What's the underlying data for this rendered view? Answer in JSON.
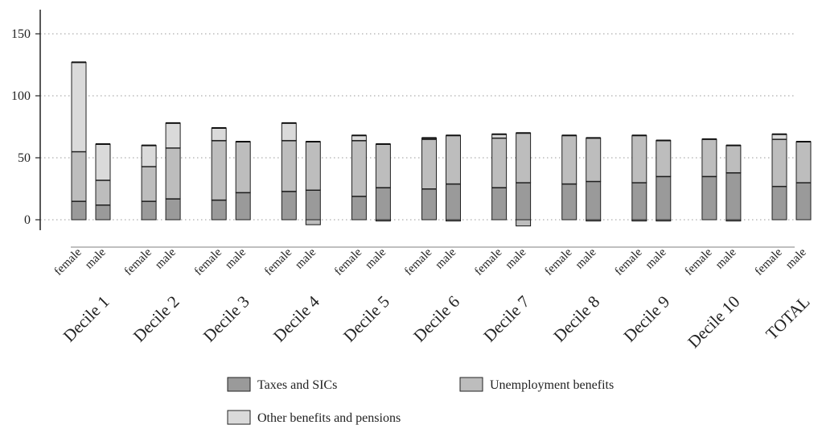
{
  "chart_data": {
    "type": "bar",
    "stacked": true,
    "title": "",
    "xlabel": "",
    "ylabel": "",
    "ylim": [
      -10,
      170
    ],
    "yticks": [
      0,
      50,
      100,
      150
    ],
    "grid": "horizontal-dotted",
    "legend_position": "bottom",
    "groups": [
      "Decile 1",
      "Decile 2",
      "Decile 3",
      "Decile 4",
      "Decile 5",
      "Decile 6",
      "Decile 7",
      "Decile 8",
      "Decile 9",
      "Decile 10",
      "TOTAL"
    ],
    "subcategories": [
      "female",
      "male"
    ],
    "series": [
      {
        "name": "Taxes and SICs",
        "color": "#9a9a9a",
        "values": [
          [
            15,
            12
          ],
          [
            15,
            17
          ],
          [
            16,
            22
          ],
          [
            23,
            24
          ],
          [
            19,
            26
          ],
          [
            25,
            29
          ],
          [
            26,
            30
          ],
          [
            29,
            31
          ],
          [
            30,
            35
          ],
          [
            35,
            38
          ],
          [
            27,
            30
          ]
        ],
        "negative": [
          [
            0,
            0
          ],
          [
            0,
            0
          ],
          [
            0,
            0
          ],
          [
            0,
            0
          ],
          [
            0,
            -1
          ],
          [
            0,
            -1
          ],
          [
            0,
            0
          ],
          [
            0,
            -1
          ],
          [
            -1,
            -1
          ],
          [
            0,
            -1
          ],
          [
            0,
            0
          ]
        ]
      },
      {
        "name": "Unemployment benefits",
        "color": "#bdbdbd",
        "values": [
          [
            40,
            20
          ],
          [
            28,
            41
          ],
          [
            48,
            41
          ],
          [
            41,
            39
          ],
          [
            45,
            35
          ],
          [
            40,
            39
          ],
          [
            40,
            40
          ],
          [
            39,
            35
          ],
          [
            38,
            29
          ],
          [
            30,
            22
          ],
          [
            38,
            33
          ]
        ],
        "negative": [
          [
            0,
            0
          ],
          [
            0,
            0
          ],
          [
            0,
            0
          ],
          [
            0,
            -4
          ],
          [
            0,
            0
          ],
          [
            0,
            0
          ],
          [
            0,
            -5
          ],
          [
            0,
            0
          ],
          [
            0,
            0
          ],
          [
            0,
            0
          ],
          [
            0,
            0
          ]
        ]
      },
      {
        "name": "Other benefits and pensions",
        "color": "#dadada",
        "values": [
          [
            72,
            29
          ],
          [
            17,
            20
          ],
          [
            10,
            0
          ],
          [
            14,
            0
          ],
          [
            4,
            0
          ],
          [
            1,
            0
          ],
          [
            3,
            0
          ],
          [
            0,
            0
          ],
          [
            0,
            0
          ],
          [
            0,
            0
          ],
          [
            4,
            0
          ]
        ]
      }
    ]
  }
}
